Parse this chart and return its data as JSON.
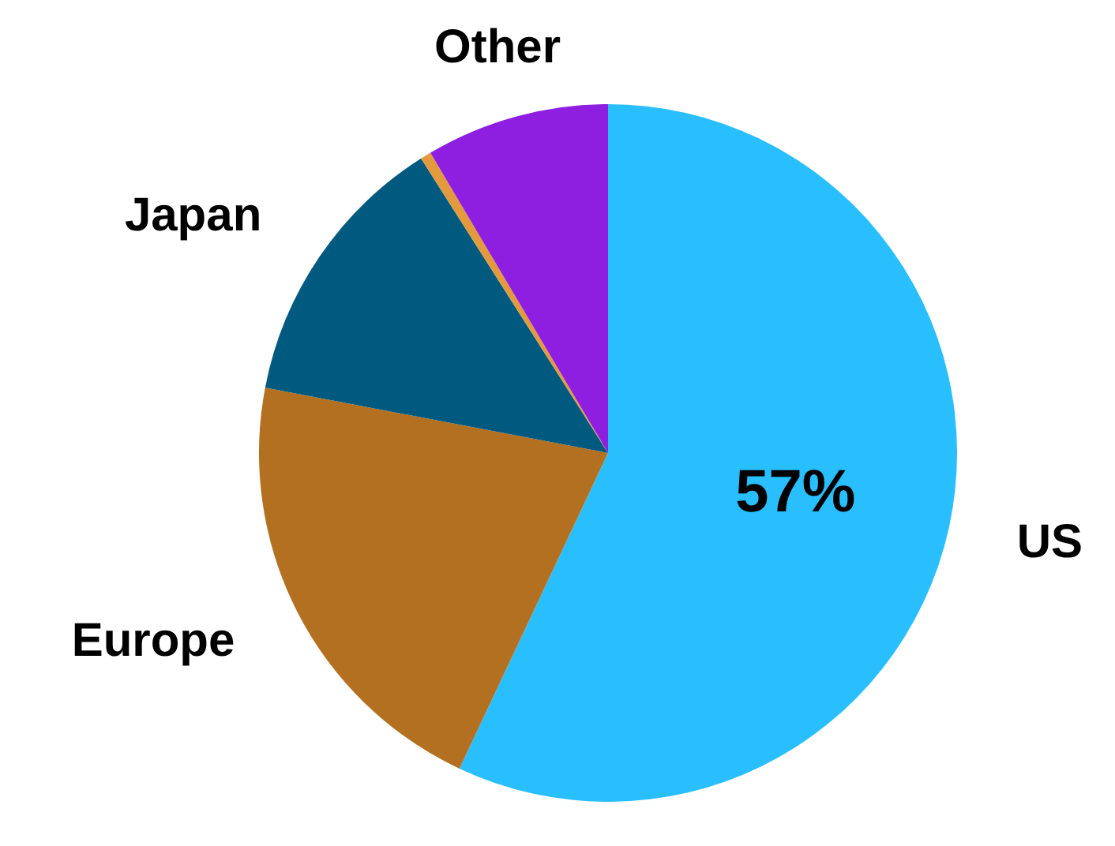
{
  "chart_data": {
    "type": "pie",
    "categories": [
      "US",
      "Europe",
      "Japan",
      null,
      "Other"
    ],
    "values": [
      57,
      21,
      13,
      0.5,
      8.5
    ],
    "colors": [
      "#29bfff",
      "#b37020",
      "#005a80",
      "#e39a3c",
      "#8e1fe0"
    ],
    "value_labels": [
      "57%",
      null,
      null,
      null,
      null
    ],
    "legend": false
  }
}
